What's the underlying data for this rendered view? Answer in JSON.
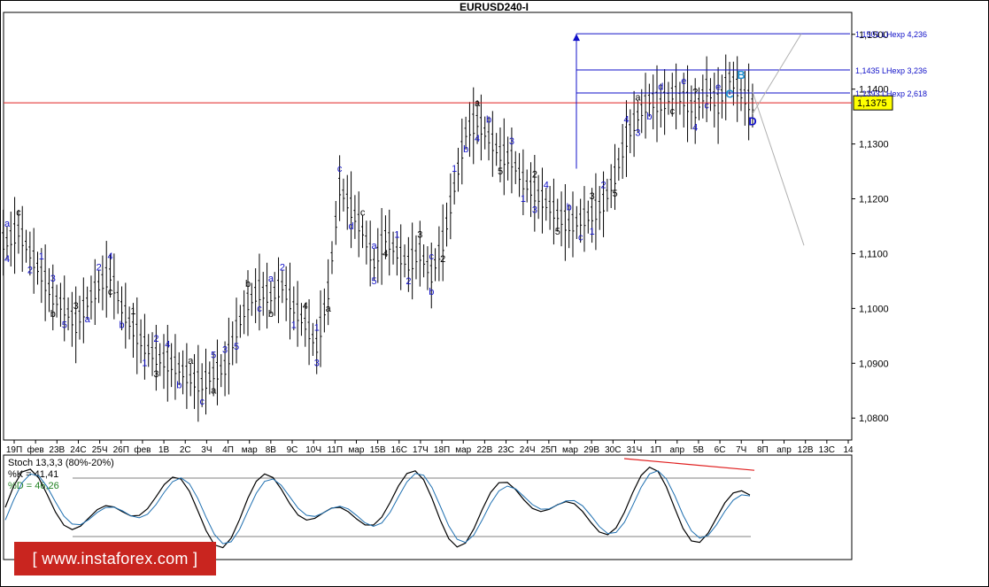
{
  "chart_data": {
    "type": "candlestick-wave",
    "title": "EURUSD240-I",
    "symbol": "EURUSD",
    "timeframe": "H4",
    "price_axis": {
      "min": 1.076,
      "max": 1.154,
      "ticks": [
        "1,1500",
        "1,1400",
        "1,1300",
        "1,1200",
        "1,1100",
        "1,1000",
        "1,0900",
        "1,0800"
      ],
      "tick_values": [
        1.15,
        1.14,
        1.13,
        1.12,
        1.11,
        1.1,
        1.09,
        1.08
      ]
    },
    "current_price": {
      "label": "1,1375",
      "value": 1.1375
    },
    "time_axis_labels": [
      "19П",
      "фев",
      "23В",
      "24С",
      "25Ч",
      "26П",
      "фев",
      "1В",
      "2С",
      "3Ч",
      "4П",
      "мар",
      "8В",
      "9С",
      "10Ч",
      "11П",
      "мар",
      "15В",
      "16С",
      "17Ч",
      "18П",
      "мар",
      "22В",
      "23С",
      "24Ч",
      "25П",
      "мар",
      "29В",
      "30С",
      "31Ч",
      "1П",
      "апр",
      "5В",
      "6С",
      "7Ч",
      "8П",
      "апр",
      "12В",
      "13С",
      "14"
    ],
    "close_series": [
      1.112,
      1.114,
      1.11,
      1.106,
      1.102,
      1.1,
      1.097,
      1.101,
      1.104,
      1.106,
      1.1,
      1.096,
      1.093,
      1.091,
      1.09,
      1.089,
      1.087,
      1.086,
      1.088,
      1.089,
      1.096,
      1.101,
      1.103,
      1.102,
      1.104,
      1.1,
      1.097,
      1.093,
      1.103,
      1.122,
      1.118,
      1.114,
      1.108,
      1.113,
      1.11,
      1.108,
      1.11,
      1.106,
      1.112,
      1.122,
      1.132,
      1.134,
      1.131,
      1.128,
      1.127,
      1.123,
      1.121,
      1.119,
      1.117,
      1.115,
      1.116,
      1.117,
      1.119,
      1.124,
      1.131,
      1.135,
      1.138,
      1.137,
      1.139,
      1.138,
      1.136,
      1.14,
      1.137,
      1.142,
      1.139,
      1.137
    ],
    "fib_levels": [
      {
        "label": "1,1501 LHexp 4,236",
        "value": 1.1501
      },
      {
        "label": "1,1435 LHexp 3,236",
        "value": 1.1435
      },
      {
        "label": "1,1393 LHexp 2,618",
        "value": 1.1393
      }
    ],
    "wave_labels": [
      "a",
      "4",
      "c",
      "2",
      "1",
      "b",
      "3",
      "5",
      "3",
      "a",
      "2",
      "c",
      "4",
      "b",
      "1",
      "1",
      "2",
      "3",
      "4",
      "b",
      "a",
      "c",
      "5",
      "a",
      "3",
      "5",
      "b",
      "c",
      "a",
      "b",
      "2",
      "1",
      "4",
      "3",
      "1",
      "a",
      "c",
      "d",
      "c",
      "5",
      "a",
      "4",
      "1",
      "2",
      "3",
      "b",
      "c",
      "2",
      "1",
      "b",
      "a",
      "4",
      "b",
      "5",
      "3",
      "1",
      "2",
      "3",
      "4",
      "5",
      "b",
      "c",
      "3",
      "1",
      "2",
      "5",
      "4",
      "3",
      "a",
      "b",
      "d",
      "c",
      "e",
      "4",
      "?",
      "c",
      "e",
      "C",
      "B",
      "D"
    ],
    "stochastic": {
      "title": "Stoch 13,3,3 (80%-20%)",
      "k_label": "%K = 41,41",
      "d_label": "%D = 46,26",
      "k": 41.41,
      "d": 46.26,
      "levels": [
        80,
        20
      ]
    }
  },
  "watermark": "[ www.instaforex.com ]",
  "colors": {
    "candle": "#000000",
    "wave_blue": "#1010c8",
    "wave_cyan": "#1e90d0",
    "support_red": "#e02020",
    "fib_blue": "#1010c8",
    "projection": "#b0b0b0"
  }
}
